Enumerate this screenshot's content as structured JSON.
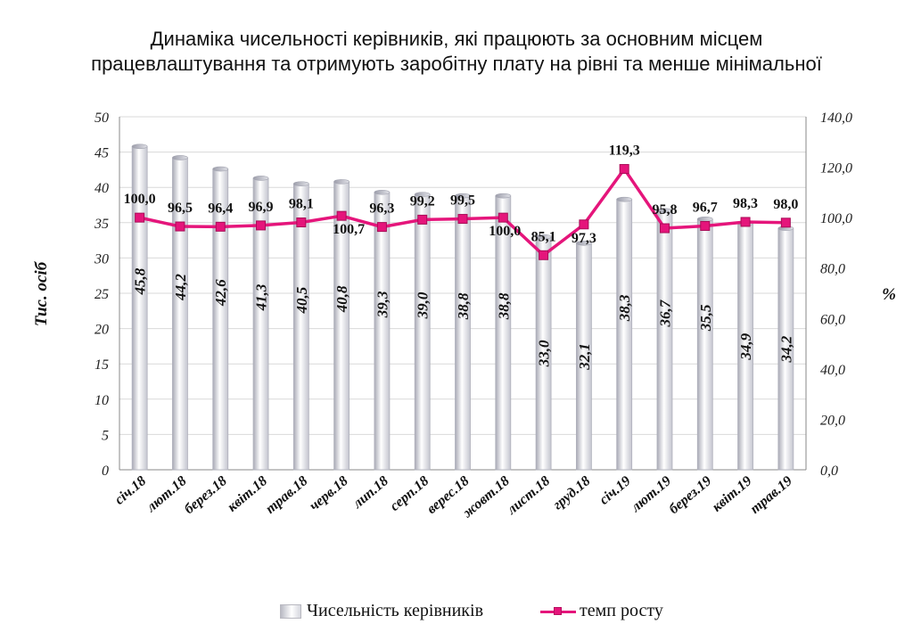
{
  "title_line1": "Динаміка чисельності керівників, які працюють за основним місцем",
  "title_line2": "працевлаштування та отримують заробітну плату на рівні та менше мінімальної",
  "chart_data": {
    "type": "bar",
    "categories": [
      "січ.18",
      "лют.18",
      "берез.18",
      "квіт.18",
      "трав.18",
      "черв.18",
      "лип.18",
      "серп.18",
      "верес.18",
      "жовт.18",
      "лист.18",
      "груд.18",
      "січ.19",
      "лют.19",
      "берез.19",
      "квіт.19",
      "трав.19"
    ],
    "series": [
      {
        "name": "Чисельність керівників",
        "type": "bar",
        "axis": "left",
        "values": [
          45.8,
          44.2,
          42.6,
          41.3,
          40.5,
          40.8,
          39.3,
          39.0,
          38.8,
          38.8,
          33.0,
          32.1,
          38.3,
          36.7,
          35.5,
          34.9,
          34.2
        ],
        "labels": [
          "45,8",
          "44,2",
          "42,6",
          "41,3",
          "40,5",
          "40,8",
          "39,3",
          "39,0",
          "38,8",
          "38,8",
          "33,0",
          "32,1",
          "38,3",
          "36,7",
          "35,5",
          "34,9",
          "34,2"
        ]
      },
      {
        "name": "темп росту",
        "type": "line",
        "axis": "right",
        "values": [
          100.0,
          96.5,
          96.4,
          96.9,
          98.1,
          100.7,
          96.3,
          99.2,
          99.5,
          100.0,
          85.1,
          97.3,
          119.3,
          95.8,
          96.7,
          98.3,
          98.0
        ],
        "labels": [
          "100,0",
          "96,5",
          "96,4",
          "96,9",
          "98,1",
          "100,7",
          "96,3",
          "99,2",
          "99,5",
          "100,0",
          "85,1",
          "97,3",
          "119,3",
          "95,8",
          "96,7",
          "98,3",
          "98,0"
        ]
      }
    ],
    "ylabel": "Тис. осіб",
    "y2label": "%",
    "ylim": [
      0,
      50
    ],
    "y2lim": [
      0,
      140
    ],
    "yticks": [
      "0",
      "5",
      "10",
      "15",
      "20",
      "25",
      "30",
      "35",
      "40",
      "45",
      "50"
    ],
    "y2ticks": [
      "0,0",
      "20,0",
      "40,0",
      "60,0",
      "80,0",
      "100,0",
      "120,0",
      "140,0"
    ],
    "grid": true,
    "legend": "bottom",
    "colors": {
      "bar": "#c9cad2",
      "line": "#e5157b"
    }
  }
}
